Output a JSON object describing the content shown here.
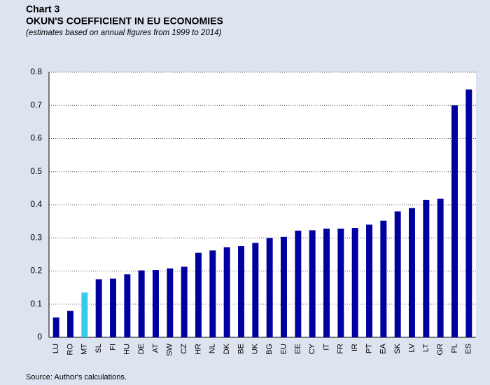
{
  "chart_data": {
    "type": "bar",
    "label": "Chart 3",
    "title": "OKUN'S COEFFICIENT IN EU ECONOMIES",
    "subtitle": "(estimates based on annual figures from 1999 to 2014)",
    "source": "Source: Author's calculations.",
    "categories": [
      "LU",
      "RO",
      "MT",
      "SL",
      "FI",
      "HU",
      "DE",
      "AT",
      "SW",
      "CZ",
      "HR",
      "NL",
      "DK",
      "BE",
      "UK",
      "BG",
      "EU",
      "EE",
      "CY",
      "IT",
      "FR",
      "IR",
      "PT",
      "EA",
      "SK",
      "LV",
      "LT",
      "GR",
      "PL",
      "ES"
    ],
    "values": [
      0.06,
      0.08,
      0.135,
      0.175,
      0.177,
      0.19,
      0.202,
      0.203,
      0.208,
      0.213,
      0.255,
      0.262,
      0.272,
      0.275,
      0.285,
      0.3,
      0.303,
      0.322,
      0.323,
      0.328,
      0.328,
      0.33,
      0.34,
      0.352,
      0.38,
      0.39,
      0.415,
      0.418,
      0.7,
      0.748
    ],
    "colors": [
      "#0000a0",
      "#0000a0",
      "#33ccee",
      "#0000a0",
      "#0000a0",
      "#0000a0",
      "#0000a0",
      "#0000a0",
      "#0000a0",
      "#0000a0",
      "#0000a0",
      "#0000a0",
      "#0000a0",
      "#0000a0",
      "#0000a0",
      "#0000a0",
      "#0000a0",
      "#0000a0",
      "#0000a0",
      "#0000a0",
      "#0000a0",
      "#0000a0",
      "#0000a0",
      "#0000a0",
      "#0000a0",
      "#0000a0",
      "#0000a0",
      "#0000a0",
      "#0000a0",
      "#0000a0"
    ],
    "ylim": [
      0,
      0.8
    ],
    "yticks": [
      0,
      0.1,
      0.2,
      0.3,
      0.4,
      0.5,
      0.6,
      0.7,
      0.8
    ],
    "grid": true
  }
}
